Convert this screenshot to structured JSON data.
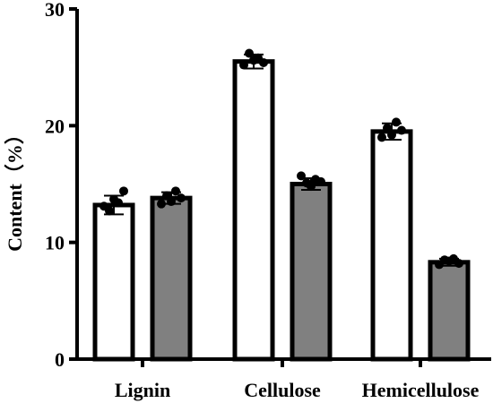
{
  "chart_data": {
    "type": "bar",
    "categories": [
      "Lignin",
      "Cellulose",
      "Hemicellulose"
    ],
    "series": [
      {
        "fill": "#ffffff",
        "values": [
          13.2,
          25.5,
          19.5
        ],
        "errors": [
          0.8,
          0.6,
          0.7
        ],
        "points": [
          [
            13.1,
            12.7,
            13.7,
            13.4,
            14.4
          ],
          [
            25.2,
            26.2,
            25.6,
            25.8,
            25.4
          ],
          [
            19.0,
            19.8,
            19.2,
            20.3,
            19.6
          ]
        ]
      },
      {
        "fill": "#808080",
        "values": [
          13.8,
          15.0,
          8.3
        ],
        "errors": [
          0.5,
          0.5,
          0.3
        ],
        "points": [
          [
            13.3,
            14.0,
            13.5,
            14.4,
            13.8
          ],
          [
            15.7,
            15.1,
            14.8,
            15.4,
            15.2
          ],
          [
            8.1,
            8.5,
            8.4,
            8.6,
            8.2
          ]
        ]
      }
    ],
    "ylabel": "Content（%）",
    "xlabel": "",
    "title": "",
    "ylim": [
      0,
      30
    ],
    "yticks": [
      0,
      10,
      20,
      30
    ],
    "grid": false,
    "legend": "none"
  },
  "colors": {
    "axis": "#000000",
    "bar_outline": "#000000",
    "dot": "#000000"
  }
}
